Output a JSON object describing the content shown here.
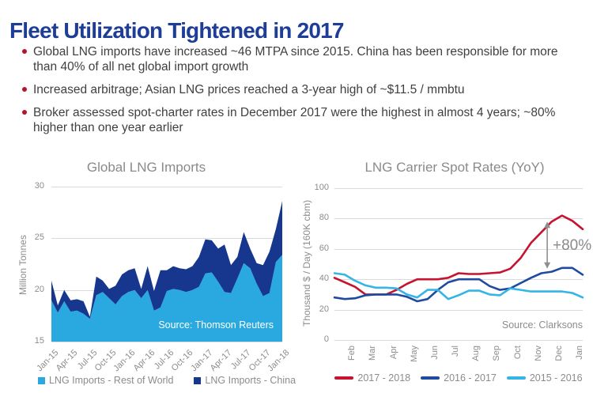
{
  "slide": {
    "title": "Fleet Utilization Tightened in 2017",
    "title_color": "#1d3d96",
    "bullet_color": "#b8122d",
    "bullets": [
      "Global LNG imports have increased ~46 MTPA since 2015. China has been responsible for more than 40% of all net global import growth",
      "Increased arbitrage; Asian LNG prices reached a 3-year high of ~$11.5 / mmbtu",
      "Broker assessed spot-charter rates in December 2017 were the highest in almost 4 years; ~80% higher than one year earlier"
    ]
  },
  "chart_data": [
    {
      "type": "area",
      "title": "Global LNG Imports",
      "ylabel": "Million Tonnes",
      "ylim": [
        15,
        30
      ],
      "yticks": [
        15,
        20,
        25,
        30
      ],
      "grid": "horizontal",
      "x_tick_every": 3,
      "x_tick_labels": [
        "Jan-15",
        "Apr-15",
        "Jul-15",
        "Oct-15",
        "Jan-16",
        "Apr-16",
        "Jul-16",
        "Oct-16",
        "Jan-17",
        "Apr-17",
        "Jul-17",
        "Oct-17",
        "Jan-18"
      ],
      "source": "Source: Thomson Reuters",
      "legend_position": "bottom",
      "series": [
        {
          "name": "LNG Imports - Rest of World",
          "color": "#29a9e0",
          "values": [
            19.0,
            17.8,
            18.9,
            17.9,
            18.0,
            17.7,
            17.2,
            19.5,
            19.8,
            19.2,
            18.6,
            19.4,
            19.8,
            20.0,
            19.2,
            20.0,
            18.0,
            18.3,
            19.9,
            20.1,
            20.0,
            19.8,
            20.0,
            20.3,
            21.6,
            21.7,
            20.8,
            19.8,
            19.7,
            21.1,
            22.6,
            22.1,
            20.6,
            19.4,
            19.7,
            22.7,
            23.4
          ]
        },
        {
          "name": "LNG Imports - China",
          "color": "#17378f",
          "stacked_on_previous": true,
          "values": [
            1.9,
            0.7,
            1.1,
            1.1,
            1.1,
            1.2,
            0.2,
            1.8,
            1.1,
            0.9,
            1.8,
            2.1,
            2.1,
            2.1,
            0.9,
            2.3,
            1.9,
            3.6,
            2.0,
            2.2,
            2.1,
            2.2,
            2.3,
            2.9,
            3.3,
            3.1,
            3.2,
            4.6,
            2.7,
            2.1,
            3.0,
            1.9,
            2.0,
            3.0,
            4.0,
            3.2,
            5.2
          ]
        }
      ]
    },
    {
      "type": "line",
      "title": "LNG Carrier Spot Rates (YoY)",
      "ylabel": "Thousand $ / Day (160K cbm)",
      "ylim": [
        0,
        100
      ],
      "yticks": [
        0,
        20,
        40,
        60,
        80,
        100
      ],
      "grid": "horizontal",
      "x_tick_labels": [
        "Feb",
        "Mar",
        "Apr",
        "May",
        "Jun",
        "Jul",
        "Aug",
        "Sep",
        "Oct",
        "Nov",
        "Dec",
        "Jan"
      ],
      "source": "Source: Clarksons",
      "legend_position": "bottom",
      "annotation": {
        "label": "+80%",
        "x_frac": 0.857,
        "from": 78,
        "to": 47,
        "color": "#8f8f8f"
      },
      "series": [
        {
          "name": "2017 - 2018",
          "color": "#c6132f",
          "values": [
            41,
            38,
            35,
            30,
            30,
            30,
            33,
            37,
            40,
            40,
            40,
            41,
            44,
            43.5,
            43.5,
            44,
            44.5,
            47,
            54,
            64,
            71,
            78,
            82,
            78.5,
            73
          ]
        },
        {
          "name": "2016 - 2017",
          "color": "#1f4aa0",
          "values": [
            28,
            27,
            27.5,
            29.5,
            30,
            30,
            30,
            28.5,
            25.5,
            27,
            33,
            38,
            40,
            40,
            40,
            35.5,
            33,
            34,
            37.5,
            41,
            44,
            45,
            47.5,
            47.5,
            43
          ]
        },
        {
          "name": "2015 - 2016",
          "color": "#35b4e6",
          "values": [
            44,
            43,
            39,
            36,
            34.5,
            34.5,
            34,
            30,
            28,
            33,
            33,
            27,
            29.5,
            32.5,
            32.5,
            30,
            29.5,
            34,
            33,
            32,
            32,
            32,
            32,
            31,
            28
          ]
        }
      ]
    }
  ]
}
